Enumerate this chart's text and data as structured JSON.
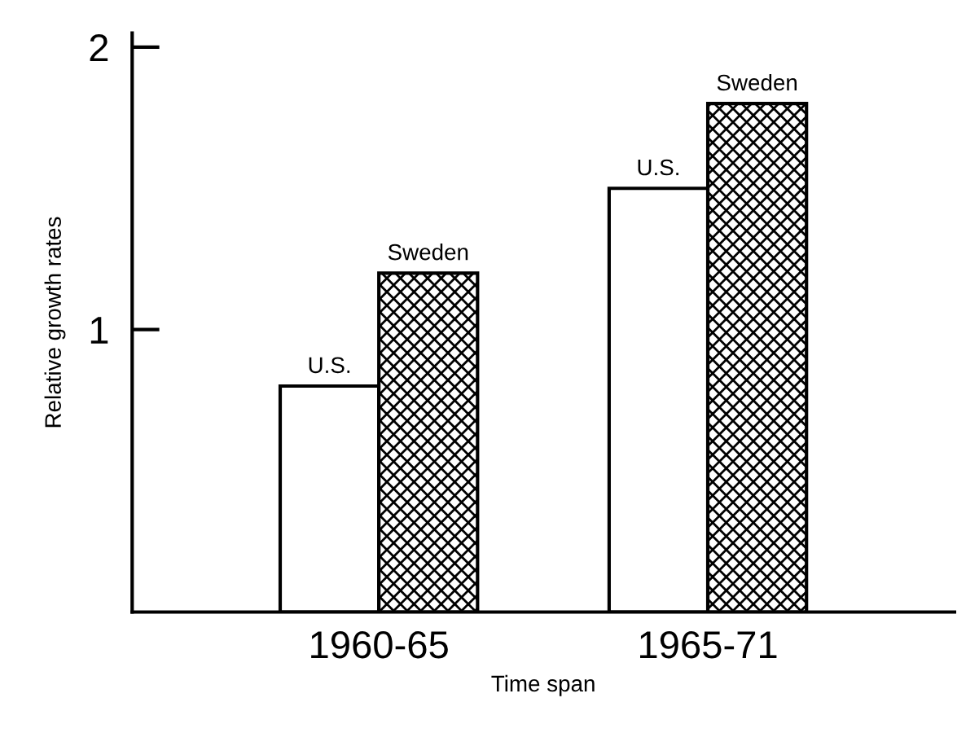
{
  "chart_data": {
    "type": "bar",
    "xlabel": "Time span",
    "ylabel": "Relative growth rates",
    "categories": [
      "1960-65",
      "1965-71"
    ],
    "series": [
      {
        "name": "U.S.",
        "color": "#ffffff",
        "values": [
          0.8,
          1.5
        ]
      },
      {
        "name": "Sweden",
        "color": "#000000",
        "values": [
          1.2,
          1.8
        ]
      }
    ],
    "ylim": [
      0,
      2.05
    ],
    "yticks": [
      1,
      2
    ],
    "grid": false,
    "legend": false
  }
}
